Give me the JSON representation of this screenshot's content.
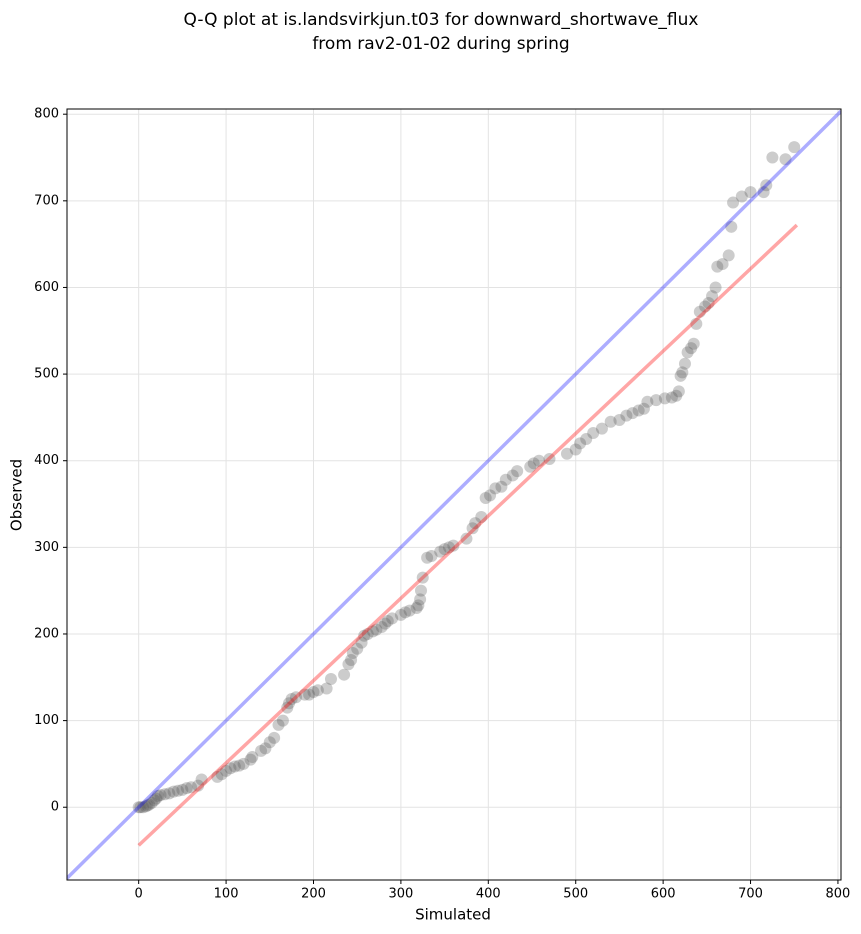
{
  "chart_data": {
    "type": "scatter",
    "title": "Q-Q plot at is.landsvirkjun.t03 for downward_shortwave_flux",
    "subtitle": "from rav2-01-02 during spring",
    "x_label": "Simulated",
    "y_label": "Observed",
    "xlim": [
      -82,
      803.5
    ],
    "ylim": [
      -84,
      806
    ],
    "xticks": [
      0,
      100,
      200,
      300,
      400,
      500,
      600,
      700,
      800
    ],
    "yticks": [
      0,
      100,
      200,
      300,
      400,
      500,
      600,
      700,
      800
    ],
    "grid": true,
    "series": [
      {
        "color": "#555555",
        "alpha": 0.3,
        "x": [
          0,
          2,
          5,
          8,
          10,
          12,
          15,
          18,
          20,
          22,
          25,
          30,
          35,
          40,
          45,
          50,
          55,
          60,
          68,
          72,
          90,
          95,
          100,
          105,
          110,
          115,
          120,
          128,
          130,
          140,
          145,
          150,
          155,
          160,
          165,
          170,
          172,
          175,
          180,
          190,
          195,
          200,
          205,
          215,
          220,
          235,
          240,
          243,
          245,
          250,
          255,
          258,
          262,
          268,
          272,
          278,
          282,
          285,
          290,
          300,
          305,
          310,
          318,
          320,
          322,
          323,
          325,
          330,
          335,
          345,
          350,
          355,
          360,
          375,
          382,
          385,
          392,
          397,
          402,
          408,
          415,
          420,
          428,
          433,
          448,
          452,
          458,
          470,
          490,
          500,
          505,
          512,
          520,
          530,
          540,
          550,
          558,
          565,
          572,
          578,
          582,
          592,
          602,
          610,
          615,
          618,
          620,
          622,
          625,
          628,
          632,
          635,
          638,
          642,
          648,
          652,
          656,
          660,
          662,
          668,
          675,
          678,
          680,
          690,
          700,
          715,
          718,
          725,
          740,
          750
        ],
        "values": [
          0,
          0,
          0,
          1,
          2,
          3,
          5,
          8,
          10,
          13,
          14,
          15,
          16,
          18,
          19,
          20,
          22,
          23,
          25,
          32,
          35,
          38,
          42,
          45,
          47,
          48,
          50,
          55,
          58,
          65,
          68,
          75,
          80,
          95,
          100,
          115,
          120,
          125,
          127,
          130,
          130,
          133,
          135,
          137,
          148,
          153,
          165,
          170,
          178,
          183,
          190,
          198,
          200,
          203,
          205,
          208,
          212,
          215,
          218,
          222,
          225,
          227,
          230,
          233,
          240,
          250,
          265,
          288,
          290,
          295,
          298,
          300,
          302,
          310,
          322,
          328,
          335,
          357,
          360,
          368,
          370,
          378,
          383,
          388,
          393,
          397,
          400,
          402,
          408,
          413,
          420,
          425,
          432,
          437,
          445,
          447,
          452,
          455,
          458,
          460,
          468,
          470,
          472,
          473,
          475,
          480,
          498,
          502,
          512,
          525,
          530,
          535,
          558,
          572,
          578,
          582,
          590,
          600,
          624,
          627,
          637,
          670,
          698,
          705,
          710,
          710,
          718,
          750,
          748,
          762
        ]
      }
    ],
    "lines": [
      {
        "color": "#0000ff",
        "alpha": 0.32,
        "x": [
          -82,
          803.5
        ],
        "values": [
          -82,
          803.5
        ]
      },
      {
        "color": "#ff0000",
        "alpha": 0.35,
        "x": [
          0,
          753
        ],
        "values": [
          -44,
          672
        ]
      }
    ]
  }
}
